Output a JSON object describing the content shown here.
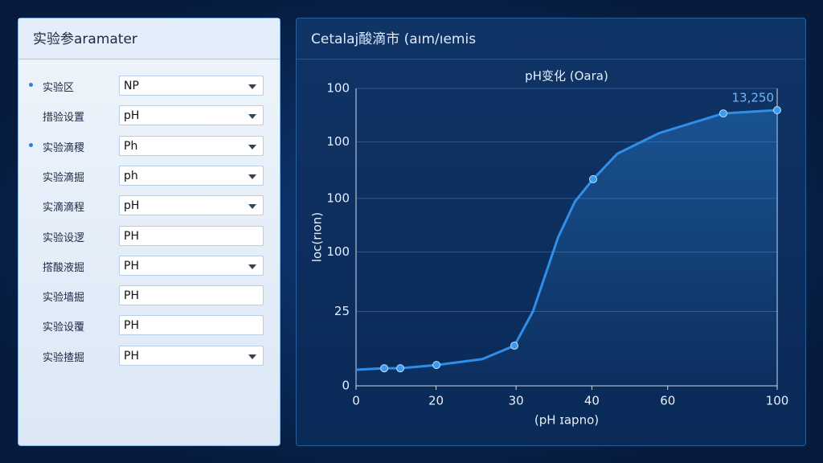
{
  "panel": {
    "title": "实验参aramater",
    "rows": [
      {
        "label": "实验区",
        "value": "NP",
        "bullet": true,
        "dropdown": true
      },
      {
        "label": "措验设置",
        "value": "pH",
        "bullet": false,
        "dropdown": true
      },
      {
        "label": "实验滴稷",
        "value": "Ph",
        "bullet": true,
        "dropdown": true
      },
      {
        "label": "实验滴掘",
        "value": "ph",
        "bullet": false,
        "dropdown": true
      },
      {
        "label": "实滴滴程",
        "value": "pH",
        "bullet": false,
        "dropdown": true
      },
      {
        "label": "实验设逻",
        "value": "PH",
        "bullet": false,
        "dropdown": false
      },
      {
        "label": "撘酸液掘",
        "value": "PH",
        "bullet": false,
        "dropdown": true
      },
      {
        "label": "实验墙掘",
        "value": "PH",
        "bullet": false,
        "dropdown": false
      },
      {
        "label": "实验设覆",
        "value": "PH",
        "bullet": false,
        "dropdown": false
      },
      {
        "label": "实验揸掘",
        "value": "PH",
        "bullet": false,
        "dropdown": true
      }
    ]
  },
  "chart_panel": {
    "title": "Cetalaj酸滴市 (aım/ıemis"
  },
  "chart_data": {
    "type": "line",
    "title": "pH变化 (Oara)",
    "x_label": "(pH ɪapno)",
    "y_label": "loc(rıon)",
    "annotation": "13,250",
    "xlim": [
      0,
      100
    ],
    "ylim": [
      0,
      100
    ],
    "grid": true,
    "xticks": [
      0,
      {
        "value": 19,
        "label": "20"
      },
      {
        "value": 38,
        "label": "30"
      },
      {
        "value": 56,
        "label": "40"
      },
      {
        "value": 74,
        "label": "60"
      },
      100
    ],
    "yticks": [
      0,
      25,
      {
        "value": 45,
        "label": "100"
      },
      {
        "value": 63,
        "label": "100"
      },
      {
        "value": 82,
        "label": "100"
      },
      100
    ],
    "series": [
      {
        "color": "#2f8fe8",
        "markers": false,
        "x": [
          0,
          6.7,
          10.5,
          19.1,
          30,
          37.6,
          42,
          48,
          52,
          56.3,
          62,
          72,
          87.2,
          100
        ],
        "values": [
          5.4,
          5.9,
          5.9,
          7,
          9,
          13.5,
          25,
          50,
          62,
          69.5,
          78,
          85,
          91.6,
          92.7
        ]
      },
      {
        "color": "#3a9af0",
        "markers": true,
        "x": [
          6.7,
          10.5,
          19.1,
          37.6,
          56.3,
          87.2,
          100
        ],
        "values": [
          5.9,
          5.9,
          7,
          13.5,
          69.5,
          91.6,
          92.7
        ]
      }
    ]
  }
}
